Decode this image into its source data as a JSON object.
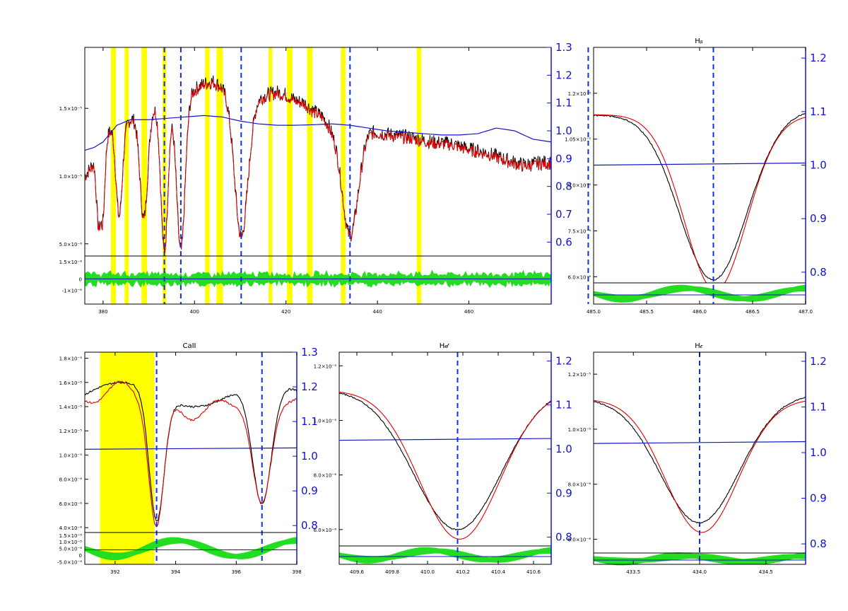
{
  "colors": {
    "observed": "#000000",
    "model": "#e00000",
    "continuum": "#1515c8",
    "line_marker": "#1030e0",
    "residual": "#22dd22",
    "mask": "#ffff00",
    "right_axis": "#1111dd"
  },
  "chart_data": [
    {
      "id": "overview",
      "type": "line",
      "title": "",
      "xlim": [
        376,
        478
      ],
      "ylim": [
        4.1e-06,
        1.95e-05
      ],
      "ylim_right": [
        0.55,
        1.3
      ],
      "xticks": [
        {
          "v": 380,
          "t": "380"
        },
        {
          "v": 400,
          "t": "400"
        },
        {
          "v": 420,
          "t": "420"
        },
        {
          "v": 440,
          "t": "440"
        },
        {
          "v": 460,
          "t": "460"
        }
      ],
      "yticks": [
        {
          "v": 5e-06,
          "t": "5.0×10⁻⁶"
        },
        {
          "v": 1e-05,
          "t": "1.0×10⁻⁵"
        },
        {
          "v": 1.5e-05,
          "t": "1.5×10⁻⁵"
        }
      ],
      "rticks": [
        {
          "v": 0.6,
          "t": "0.6"
        },
        {
          "v": 0.7,
          "t": "0.7"
        },
        {
          "v": 0.8,
          "t": "0.8"
        },
        {
          "v": 0.9,
          "t": "0.9"
        },
        {
          "v": 1.0,
          "t": "1.0"
        },
        {
          "v": 1.1,
          "t": "1.1"
        },
        {
          "v": 1.2,
          "t": "1.2"
        },
        {
          "v": 1.3,
          "t": "1.3"
        }
      ],
      "resid_ylim": [
        -2.2e-06,
        2e-06
      ],
      "resid_yticks": [
        {
          "v": 1.5e-06,
          "t": "1.5×10⁻⁶"
        },
        {
          "v": 0,
          "t": "0"
        },
        {
          "v": -1e-06,
          "t": "-1×10⁻⁶"
        }
      ],
      "lines_nm": [
        393.4,
        397.0,
        410.2,
        434.0,
        486.1
      ],
      "mask_bands": [
        [
          381.7,
          382.8
        ],
        [
          384.7,
          385.6
        ],
        [
          388.4,
          389.6
        ],
        [
          393.0,
          393.8
        ],
        [
          402.3,
          403.3
        ],
        [
          404.8,
          406.2
        ],
        [
          416.2,
          417.0
        ],
        [
          420.2,
          421.4
        ],
        [
          424.6,
          425.8
        ],
        [
          432.0,
          433.0
        ],
        [
          448.6,
          449.6
        ],
        [
          448.9,
          449.6
        ],
        [
          448.6,
          449.4
        ]
      ],
      "continuum_rt": [
        [
          376,
          0.93
        ],
        [
          378,
          0.94
        ],
        [
          380,
          0.96
        ],
        [
          383,
          1.02
        ],
        [
          386,
          1.04
        ],
        [
          390,
          1.04
        ],
        [
          394,
          1.045
        ],
        [
          398,
          1.05
        ],
        [
          402,
          1.055
        ],
        [
          406,
          1.05
        ],
        [
          410,
          1.035
        ],
        [
          414,
          1.025
        ],
        [
          418,
          1.02
        ],
        [
          422,
          1.02
        ],
        [
          426,
          1.022
        ],
        [
          430,
          1.025
        ],
        [
          434,
          1.02
        ],
        [
          438,
          1.01
        ],
        [
          442,
          1.0
        ],
        [
          446,
          0.995
        ],
        [
          450,
          0.99
        ],
        [
          454,
          0.985
        ],
        [
          458,
          0.985
        ],
        [
          462,
          0.99
        ],
        [
          466,
          1.01
        ],
        [
          470,
          1.0
        ],
        [
          474,
          0.97
        ],
        [
          478,
          0.96
        ]
      ],
      "spectrum": [
        [
          376,
          1e-05
        ],
        [
          377,
          1.05e-05
        ],
        [
          378,
          1.1e-05
        ],
        [
          379,
          1e-05
        ],
        [
          380,
          1.12e-05
        ],
        [
          381,
          1.3e-05
        ],
        [
          382,
          1.38e-05
        ],
        [
          383,
          1.42e-05
        ],
        [
          385,
          1.4e-05
        ],
        [
          387,
          1.44e-05
        ],
        [
          389,
          1.48e-05
        ],
        [
          390,
          1.5e-05
        ],
        [
          392,
          1.54e-05
        ],
        [
          394,
          1.58e-05
        ],
        [
          396,
          1.56e-05
        ],
        [
          398,
          1.62e-05
        ],
        [
          400,
          1.64e-05
        ],
        [
          402,
          1.68e-05
        ],
        [
          404,
          1.7e-05
        ],
        [
          406,
          1.66e-05
        ],
        [
          408,
          1.6e-05
        ],
        [
          410,
          1.56e-05
        ],
        [
          412,
          1.52e-05
        ],
        [
          414,
          1.58e-05
        ],
        [
          416,
          1.6e-05
        ],
        [
          418,
          1.62e-05
        ],
        [
          420,
          1.6e-05
        ],
        [
          422,
          1.56e-05
        ],
        [
          424,
          1.54e-05
        ],
        [
          426,
          1.48e-05
        ],
        [
          428,
          1.44e-05
        ],
        [
          430,
          1.36e-05
        ],
        [
          432,
          1.34e-05
        ],
        [
          434,
          1.32e-05
        ],
        [
          436,
          1.3e-05
        ],
        [
          438,
          1.34e-05
        ],
        [
          440,
          1.32e-05
        ],
        [
          444,
          1.3e-05
        ],
        [
          448,
          1.28e-05
        ],
        [
          452,
          1.25e-05
        ],
        [
          456,
          1.24e-05
        ],
        [
          460,
          1.2e-05
        ],
        [
          464,
          1.17e-05
        ],
        [
          468,
          1.12e-05
        ],
        [
          472,
          1.08e-05
        ],
        [
          476,
          1.1e-05
        ],
        [
          478,
          1.1e-05
        ]
      ],
      "absorptions": [
        [
          379.0,
          0.6,
          5e-06
        ],
        [
          379.9,
          0.6,
          5.5e-06
        ],
        [
          383.5,
          1.0,
          7e-06
        ],
        [
          388.9,
          1.2,
          7.5e-06
        ],
        [
          393.4,
          1.1,
          1e-05
        ],
        [
          397.0,
          1.3,
          1e-05
        ],
        [
          410.2,
          2.0,
          9e-06
        ],
        [
          434.0,
          2.4,
          8e-06
        ],
        [
          486.1,
          3.0,
          6.5e-06
        ]
      ]
    },
    {
      "id": "hbeta",
      "type": "line",
      "title": "Hᵦ",
      "xlim": [
        485.0,
        487.0
      ],
      "ylim": [
        5.8e-06,
        1.35e-05
      ],
      "ylim_right": [
        0.78,
        1.22
      ],
      "xticks": [
        {
          "v": 485.0,
          "t": "485.0"
        },
        {
          "v": 485.5,
          "t": "485.5"
        },
        {
          "v": 486.0,
          "t": "486.0"
        },
        {
          "v": 486.5,
          "t": "486.5"
        },
        {
          "v": 487.0,
          "t": "487.0"
        }
      ],
      "yticks": [
        {
          "v": 6e-06,
          "t": "6.0×10⁻⁶"
        },
        {
          "v": 7.5e-06,
          "t": "7.5×10⁻⁶"
        },
        {
          "v": 9e-06,
          "t": "9.0×10⁻⁶"
        },
        {
          "v": 1.05e-05,
          "t": "1.05×10⁻⁵"
        },
        {
          "v": 1.2e-05,
          "t": "1.2×10⁻⁵"
        }
      ],
      "rticks": [
        {
          "v": 0.8,
          "t": "0.8"
        },
        {
          "v": 0.9,
          "t": "0.9"
        },
        {
          "v": 1.0,
          "t": "1.0"
        },
        {
          "v": 1.1,
          "t": "1.1"
        },
        {
          "v": 1.2,
          "t": "1.2"
        }
      ],
      "lines_nm": [
        486.13
      ],
      "continuum_level": 1.0,
      "center": 486.13,
      "depth": 5.5e-06,
      "width": 0.45,
      "base": 1.14e-05
    },
    {
      "id": "caii",
      "type": "line",
      "title": "CaII",
      "xlim": [
        391.0,
        398.0
      ],
      "ylim": [
        3.6e-06,
        1.85e-05
      ],
      "ylim_right": [
        0.78,
        1.3
      ],
      "xticks": [
        {
          "v": 392,
          "t": "392"
        },
        {
          "v": 394,
          "t": "394"
        },
        {
          "v": 396,
          "t": "396"
        },
        {
          "v": 398,
          "t": "398"
        }
      ],
      "yticks": [
        {
          "v": 4e-06,
          "t": "4.0×10⁻⁶"
        },
        {
          "v": 6e-06,
          "t": "6.0×10⁻⁶"
        },
        {
          "v": 8e-06,
          "t": "8.0×10⁻⁶"
        },
        {
          "v": 1e-05,
          "t": "1.0×10⁻⁵"
        },
        {
          "v": 1.2e-05,
          "t": "1.2×10⁻⁵"
        },
        {
          "v": 1.4e-05,
          "t": "1.4×10⁻⁵"
        },
        {
          "v": 1.6e-05,
          "t": "1.6×10⁻⁵"
        },
        {
          "v": 1.8e-05,
          "t": "1.8×10⁻⁵"
        }
      ],
      "rticks": [
        {
          "v": 0.8,
          "t": "0.8"
        },
        {
          "v": 0.9,
          "t": "0.9"
        },
        {
          "v": 1.0,
          "t": "1.0"
        },
        {
          "v": 1.1,
          "t": "1.1"
        },
        {
          "v": 1.2,
          "t": "1.2"
        },
        {
          "v": 1.3,
          "t": "1.3"
        }
      ],
      "lines_nm": [
        393.37,
        396.85
      ],
      "mask_bands": [
        [
          391.5,
          393.3
        ]
      ],
      "continuum_level": 1.02,
      "resid_ylim": [
        -7e-06,
        1.7e-05
      ],
      "resid_yticks": [
        {
          "v": 1.5e-05,
          "t": "1.5×10⁻⁵"
        },
        {
          "v": 1e-05,
          "t": "1.0×10⁻⁵"
        },
        {
          "v": 5e-06,
          "t": "5.0×10⁻⁶"
        },
        {
          "v": 0,
          "t": "0"
        },
        {
          "v": -5e-06,
          "t": "-5.0×10⁻⁶"
        }
      ]
    },
    {
      "id": "hdelta",
      "type": "line",
      "title": "H𝒹",
      "xlim": [
        409.5,
        410.7
      ],
      "ylim": [
        5.4e-06,
        1.25e-05
      ],
      "ylim_right": [
        0.78,
        1.22
      ],
      "xticks": [
        {
          "v": 409.6,
          "t": "409.6"
        },
        {
          "v": 409.8,
          "t": "409.8"
        },
        {
          "v": 410.0,
          "t": "410.0"
        },
        {
          "v": 410.2,
          "t": "410.2"
        },
        {
          "v": 410.4,
          "t": "410.4"
        },
        {
          "v": 410.6,
          "t": "410.6"
        }
      ],
      "yticks": [
        {
          "v": 6e-06,
          "t": "6.0×10⁻⁶"
        },
        {
          "v": 8e-06,
          "t": "8.0×10⁻⁶"
        },
        {
          "v": 1e-05,
          "t": "1.0×10⁻⁵"
        },
        {
          "v": 1.2e-05,
          "t": "1.2×10⁻⁵"
        }
      ],
      "rticks": [
        {
          "v": 0.8,
          "t": "0.8"
        },
        {
          "v": 0.9,
          "t": "0.9"
        },
        {
          "v": 1.0,
          "t": "1.0"
        },
        {
          "v": 1.1,
          "t": "1.1"
        },
        {
          "v": 1.2,
          "t": "1.2"
        }
      ],
      "lines_nm": [
        410.17
      ],
      "continuum_level": 1.02,
      "center": 410.17,
      "depth": 5.2e-06,
      "width": 0.35,
      "base": 1.12e-05
    },
    {
      "id": "hgamma",
      "type": "line",
      "title": "H𝒸",
      "xlim": [
        433.2,
        434.8
      ],
      "ylim": [
        5.5e-06,
        1.28e-05
      ],
      "ylim_right": [
        0.78,
        1.22
      ],
      "xticks": [
        {
          "v": 433.5,
          "t": "433.5"
        },
        {
          "v": 434.0,
          "t": "434.0"
        },
        {
          "v": 434.5,
          "t": "434.5"
        }
      ],
      "yticks": [
        {
          "v": 6e-06,
          "t": "6.0×10⁻⁶"
        },
        {
          "v": 8e-06,
          "t": "8.0×10⁻⁶"
        },
        {
          "v": 1e-05,
          "t": "1.0×10⁻⁵"
        },
        {
          "v": 1.2e-05,
          "t": "1.2×10⁻⁵"
        }
      ],
      "rticks": [
        {
          "v": 0.8,
          "t": "0.8"
        },
        {
          "v": 0.9,
          "t": "0.9"
        },
        {
          "v": 1.0,
          "t": "1.0"
        },
        {
          "v": 1.1,
          "t": "1.1"
        },
        {
          "v": 1.2,
          "t": "1.2"
        }
      ],
      "lines_nm": [
        434.0
      ],
      "continuum_level": 1.02,
      "center": 434.0,
      "depth": 4.6e-06,
      "width": 0.42,
      "base": 1.12e-05
    }
  ]
}
